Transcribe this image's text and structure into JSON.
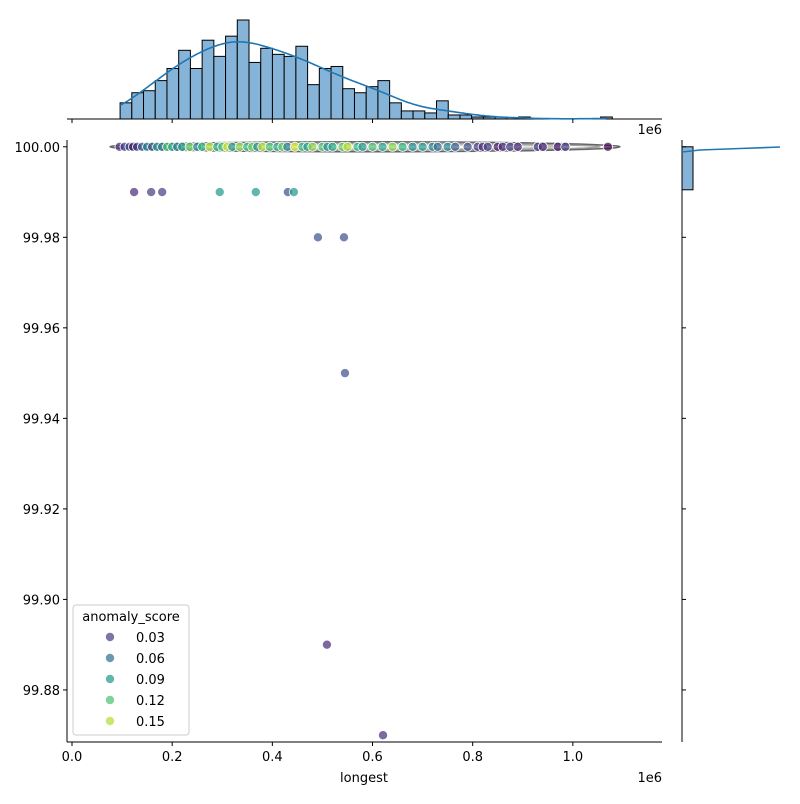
{
  "chart_data": {
    "type": "scatter",
    "xlabel": "longest",
    "ylabel": "",
    "x_offset_label": "1e6",
    "top_offset_label": "1e6",
    "xlim": [
      -0.01,
      1.178
    ],
    "ylim": [
      99.8685,
      100.0015
    ],
    "xticks": [
      0.0,
      0.2,
      0.4,
      0.6,
      0.8,
      1.0
    ],
    "xtick_labels": [
      "0.0",
      "0.2",
      "0.4",
      "0.6",
      "0.8",
      "1.0"
    ],
    "yticks": [
      100.0,
      99.98,
      99.96,
      99.94,
      99.92,
      99.9,
      99.88
    ],
    "ytick_labels": [
      "100.00",
      "99.98",
      "99.96",
      "99.94",
      "99.92",
      "99.90",
      "99.88"
    ],
    "grid": false,
    "colormap": "viridis",
    "hue_range": [
      0,
      0.17
    ],
    "legend": {
      "title": "anomaly_score",
      "placement": "lower-left",
      "entries": [
        "0.03",
        "0.06",
        "0.09",
        "0.12",
        "0.15"
      ],
      "values": [
        0.03,
        0.06,
        0.09,
        0.12,
        0.15
      ]
    },
    "points": {
      "x": [
        0.095,
        0.105,
        0.115,
        0.122,
        0.13,
        0.14,
        0.15,
        0.16,
        0.17,
        0.18,
        0.19,
        0.2,
        0.21,
        0.22,
        0.235,
        0.25,
        0.26,
        0.275,
        0.29,
        0.3,
        0.31,
        0.32,
        0.335,
        0.35,
        0.36,
        0.37,
        0.38,
        0.395,
        0.41,
        0.42,
        0.43,
        0.445,
        0.46,
        0.47,
        0.48,
        0.5,
        0.51,
        0.52,
        0.54,
        0.55,
        0.57,
        0.58,
        0.6,
        0.62,
        0.64,
        0.66,
        0.68,
        0.7,
        0.72,
        0.73,
        0.75,
        0.765,
        0.79,
        0.81,
        0.82,
        0.83,
        0.85,
        0.86,
        0.875,
        0.89,
        0.93,
        0.94,
        0.97,
        0.985,
        1.07,
        0.124,
        0.158,
        0.18,
        0.295,
        0.367,
        0.431,
        0.443,
        0.491,
        0.543,
        0.545,
        0.509,
        0.621
      ],
      "y": [
        100,
        100,
        100,
        100,
        100,
        100,
        100,
        100,
        100,
        100,
        100,
        100,
        100,
        100,
        100,
        100,
        100,
        100,
        100,
        100,
        100,
        100,
        100,
        100,
        100,
        100,
        100,
        100,
        100,
        100,
        100,
        100,
        100,
        100,
        100,
        100,
        100,
        100,
        100,
        100,
        100,
        100,
        100,
        100,
        100,
        100,
        100,
        100,
        100,
        100,
        100,
        100,
        100,
        100,
        100,
        100,
        100,
        100,
        100,
        100,
        100,
        100,
        100,
        100,
        100,
        99.99,
        99.99,
        99.99,
        99.99,
        99.99,
        99.99,
        99.99,
        99.98,
        99.98,
        99.95,
        99.89,
        99.87
      ],
      "anomaly_score": [
        0.02,
        0.03,
        0.04,
        0.01,
        0.03,
        0.05,
        0.07,
        0.04,
        0.09,
        0.06,
        0.12,
        0.1,
        0.07,
        0.09,
        0.13,
        0.08,
        0.11,
        0.15,
        0.1,
        0.12,
        0.16,
        0.09,
        0.14,
        0.11,
        0.13,
        0.08,
        0.15,
        0.12,
        0.1,
        0.13,
        0.07,
        0.16,
        0.11,
        0.09,
        0.14,
        0.12,
        0.08,
        0.1,
        0.13,
        0.15,
        0.11,
        0.09,
        0.12,
        0.1,
        0.14,
        0.11,
        0.08,
        0.09,
        0.07,
        0.06,
        0.08,
        0.05,
        0.04,
        0.03,
        0.02,
        0.03,
        0.01,
        0.02,
        0.03,
        0.02,
        0.03,
        0.02,
        0.01,
        0.03,
        0.0,
        0.02,
        0.03,
        0.03,
        0.09,
        0.09,
        0.04,
        0.09,
        0.04,
        0.04,
        0.04,
        0.02,
        0.02
      ]
    },
    "top_histogram": {
      "bin_start": 0.096,
      "bin_width": 0.0234,
      "counts": [
        8,
        13,
        14,
        19,
        25,
        34,
        25,
        39,
        31,
        41,
        49,
        28,
        35,
        32,
        31,
        36,
        17,
        25,
        26,
        15,
        13,
        16,
        19,
        8,
        4,
        4,
        3,
        9,
        2,
        2,
        1,
        1,
        1,
        0,
        1,
        0,
        0,
        0,
        0,
        0,
        0,
        1
      ],
      "color": "#86b4d8",
      "kde_color": "#1f77b4"
    },
    "right_histogram": {
      "bin_range": [
        99.9905,
        100.0
      ],
      "color": "#86b4d8",
      "kde_color": "#1f77b4"
    }
  }
}
